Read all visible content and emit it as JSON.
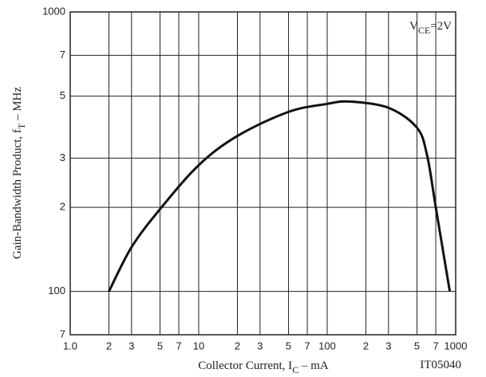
{
  "chart_data": {
    "type": "line",
    "ylabel": {
      "main": "Gain-Bandwidth Product, f",
      "sub": "T",
      "unit": " – MHz"
    },
    "xlabel": {
      "main": "Collector Current, I",
      "sub": "C",
      "unit": " – mA"
    },
    "annotation": {
      "main": "V",
      "sub": "CE",
      "rest": "=2V"
    },
    "figure_id": "IT05040",
    "log_x": true,
    "log_y": true,
    "grid": true,
    "xlim": [
      1,
      1000
    ],
    "xticks": [
      {
        "value": 1,
        "label": "1.0"
      },
      2,
      3,
      5,
      7,
      10,
      {
        "value": 20,
        "label": "2"
      },
      {
        "value": 30,
        "label": "3"
      },
      {
        "value": 50,
        "label": "5"
      },
      {
        "value": 70,
        "label": "7"
      },
      100,
      {
        "value": 200,
        "label": "2"
      },
      {
        "value": 300,
        "label": "3"
      },
      {
        "value": 500,
        "label": "5"
      },
      {
        "value": 700,
        "label": "7"
      },
      1000
    ],
    "ylim": [
      70,
      1000
    ],
    "yticks": [
      {
        "value": 70,
        "label": "7"
      },
      100,
      {
        "value": 200,
        "label": "2"
      },
      {
        "value": 300,
        "label": "3"
      },
      {
        "value": 500,
        "label": "5"
      },
      {
        "value": 700,
        "label": "7"
      },
      1000
    ],
    "series": [
      {
        "color": "#111111",
        "x": [
          2,
          3,
          5,
          10,
          20,
          50,
          100,
          150,
          300,
          500,
          600,
          700,
          900
        ],
        "values": [
          100,
          144,
          197,
          283,
          360,
          439,
          469,
          478,
          454,
          385,
          306,
          200,
          100
        ]
      }
    ]
  }
}
